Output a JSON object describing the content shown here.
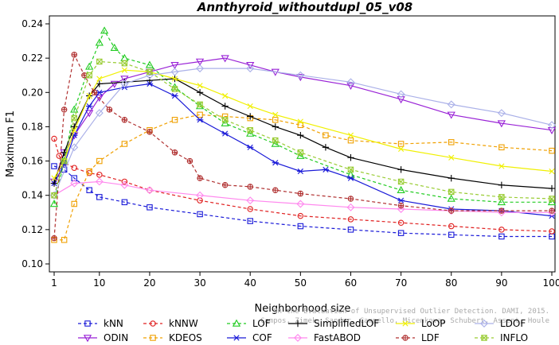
{
  "chart_data": {
    "type": "line",
    "title": "Annthyroid_withoutdupl_05_v08",
    "xlabel": "Neighborhood size",
    "ylabel": "Maximum F1",
    "xlim": [
      1,
      100
    ],
    "ylim": [
      0.1,
      0.24
    ],
    "xticks": [
      1,
      10,
      20,
      30,
      40,
      50,
      60,
      70,
      80,
      90,
      100
    ],
    "yticks": [
      0.1,
      0.12,
      0.14,
      0.16,
      0.18,
      0.2,
      0.22,
      0.24
    ],
    "x_tick_labels": [
      "1",
      "10",
      "20",
      "30",
      "40",
      "50",
      "60",
      "70",
      "80",
      "90",
      "100"
    ],
    "y_tick_labels": [
      "0.10",
      "0.12",
      "0.14",
      "0.16",
      "0.18",
      "0.20",
      "0.22",
      "0.24"
    ],
    "legend_placement": "bottom",
    "credit": "Campos, Zimek, Sander, Campello, Micenkova, Schubert, Assent, Houle",
    "credit2": "On the Evaluation of Unsupervised Outlier Detection. DAMI, 2015.",
    "series": [
      {
        "name": "kNN",
        "color": "#1a1ad8",
        "marker": "square",
        "dash": "4,3",
        "points": [
          [
            1,
            0.157
          ],
          [
            3,
            0.155
          ],
          [
            5,
            0.15
          ],
          [
            8,
            0.143
          ],
          [
            10,
            0.139
          ],
          [
            15,
            0.136
          ],
          [
            20,
            0.133
          ],
          [
            30,
            0.129
          ],
          [
            40,
            0.125
          ],
          [
            50,
            0.122
          ],
          [
            60,
            0.12
          ],
          [
            70,
            0.118
          ],
          [
            80,
            0.117
          ],
          [
            90,
            0.116
          ],
          [
            100,
            0.116
          ]
        ]
      },
      {
        "name": "ODIN",
        "color": "#9922d6",
        "marker": "triangle-down",
        "dash": "",
        "points": [
          [
            1,
            0.148
          ],
          [
            3,
            0.165
          ],
          [
            5,
            0.175
          ],
          [
            8,
            0.188
          ],
          [
            10,
            0.197
          ],
          [
            13,
            0.205
          ],
          [
            15,
            0.208
          ],
          [
            20,
            0.212
          ],
          [
            25,
            0.216
          ],
          [
            30,
            0.218
          ],
          [
            35,
            0.22
          ],
          [
            40,
            0.216
          ],
          [
            45,
            0.212
          ],
          [
            50,
            0.209
          ],
          [
            60,
            0.204
          ],
          [
            70,
            0.196
          ],
          [
            80,
            0.187
          ],
          [
            90,
            0.182
          ],
          [
            100,
            0.178
          ]
        ]
      },
      {
        "name": "kNNW",
        "color": "#e02020",
        "marker": "circle",
        "dash": "4,3",
        "points": [
          [
            1,
            0.173
          ],
          [
            2,
            0.163
          ],
          [
            3,
            0.159
          ],
          [
            5,
            0.156
          ],
          [
            8,
            0.153
          ],
          [
            10,
            0.152
          ],
          [
            15,
            0.148
          ],
          [
            20,
            0.143
          ],
          [
            30,
            0.137
          ],
          [
            40,
            0.132
          ],
          [
            50,
            0.128
          ],
          [
            60,
            0.126
          ],
          [
            70,
            0.124
          ],
          [
            80,
            0.122
          ],
          [
            90,
            0.12
          ],
          [
            100,
            0.119
          ]
        ]
      },
      {
        "name": "KDEOS",
        "color": "#f0a000",
        "marker": "square",
        "dash": "4,3",
        "points": [
          [
            1,
            0.114
          ],
          [
            3,
            0.114
          ],
          [
            5,
            0.135
          ],
          [
            8,
            0.154
          ],
          [
            10,
            0.16
          ],
          [
            15,
            0.17
          ],
          [
            20,
            0.178
          ],
          [
            25,
            0.184
          ],
          [
            30,
            0.187
          ],
          [
            35,
            0.186
          ],
          [
            40,
            0.185
          ],
          [
            45,
            0.184
          ],
          [
            50,
            0.181
          ],
          [
            55,
            0.175
          ],
          [
            60,
            0.172
          ],
          [
            70,
            0.17
          ],
          [
            80,
            0.171
          ],
          [
            90,
            0.168
          ],
          [
            100,
            0.166
          ]
        ]
      },
      {
        "name": "LOF",
        "color": "#22cc22",
        "marker": "triangle",
        "dash": "4,3",
        "points": [
          [
            1,
            0.135
          ],
          [
            3,
            0.16
          ],
          [
            5,
            0.19
          ],
          [
            8,
            0.215
          ],
          [
            10,
            0.229
          ],
          [
            11,
            0.236
          ],
          [
            13,
            0.226
          ],
          [
            15,
            0.22
          ],
          [
            20,
            0.216
          ],
          [
            25,
            0.203
          ],
          [
            30,
            0.192
          ],
          [
            35,
            0.182
          ],
          [
            40,
            0.176
          ],
          [
            45,
            0.17
          ],
          [
            50,
            0.163
          ],
          [
            60,
            0.152
          ],
          [
            70,
            0.143
          ],
          [
            80,
            0.138
          ],
          [
            90,
            0.136
          ],
          [
            100,
            0.136
          ]
        ]
      },
      {
        "name": "COF",
        "color": "#1a1ad8",
        "marker": "asterisk",
        "dash": "",
        "points": [
          [
            1,
            0.147
          ],
          [
            3,
            0.158
          ],
          [
            5,
            0.175
          ],
          [
            8,
            0.192
          ],
          [
            10,
            0.2
          ],
          [
            15,
            0.203
          ],
          [
            20,
            0.205
          ],
          [
            25,
            0.198
          ],
          [
            30,
            0.184
          ],
          [
            35,
            0.176
          ],
          [
            40,
            0.168
          ],
          [
            45,
            0.159
          ],
          [
            50,
            0.154
          ],
          [
            55,
            0.155
          ],
          [
            60,
            0.15
          ],
          [
            70,
            0.137
          ],
          [
            80,
            0.132
          ],
          [
            90,
            0.131
          ],
          [
            100,
            0.128
          ]
        ]
      },
      {
        "name": "SimplifiedLOF",
        "color": "#000000",
        "marker": "plus",
        "dash": "",
        "points": [
          [
            1,
            0.147
          ],
          [
            3,
            0.165
          ],
          [
            5,
            0.18
          ],
          [
            8,
            0.198
          ],
          [
            10,
            0.205
          ],
          [
            15,
            0.206
          ],
          [
            20,
            0.207
          ],
          [
            25,
            0.208
          ],
          [
            30,
            0.2
          ],
          [
            35,
            0.192
          ],
          [
            40,
            0.186
          ],
          [
            45,
            0.18
          ],
          [
            50,
            0.175
          ],
          [
            55,
            0.168
          ],
          [
            60,
            0.162
          ],
          [
            70,
            0.155
          ],
          [
            80,
            0.15
          ],
          [
            90,
            0.146
          ],
          [
            100,
            0.144
          ]
        ]
      },
      {
        "name": "FastABOD",
        "color": "#ff88ee",
        "marker": "diamond",
        "dash": "",
        "points": [
          [
            1,
            0.14
          ],
          [
            5,
            0.147
          ],
          [
            10,
            0.148
          ],
          [
            15,
            0.146
          ],
          [
            20,
            0.143
          ],
          [
            30,
            0.14
          ],
          [
            40,
            0.137
          ],
          [
            50,
            0.135
          ],
          [
            60,
            0.133
          ],
          [
            70,
            0.132
          ],
          [
            80,
            0.131
          ],
          [
            90,
            0.13
          ],
          [
            100,
            0.13
          ]
        ]
      },
      {
        "name": "LoOP",
        "color": "#f0f000",
        "marker": "x",
        "dash": "",
        "points": [
          [
            1,
            0.15
          ],
          [
            3,
            0.16
          ],
          [
            5,
            0.178
          ],
          [
            8,
            0.198
          ],
          [
            10,
            0.208
          ],
          [
            15,
            0.213
          ],
          [
            20,
            0.212
          ],
          [
            25,
            0.208
          ],
          [
            30,
            0.204
          ],
          [
            35,
            0.198
          ],
          [
            40,
            0.192
          ],
          [
            45,
            0.187
          ],
          [
            50,
            0.183
          ],
          [
            60,
            0.175
          ],
          [
            70,
            0.167
          ],
          [
            80,
            0.162
          ],
          [
            90,
            0.157
          ],
          [
            100,
            0.154
          ]
        ]
      },
      {
        "name": "LDF",
        "color": "#b03030",
        "marker": "circle-plus",
        "dash": "4,3",
        "points": [
          [
            1,
            0.115
          ],
          [
            3,
            0.19
          ],
          [
            5,
            0.222
          ],
          [
            7,
            0.21
          ],
          [
            9,
            0.2
          ],
          [
            12,
            0.19
          ],
          [
            15,
            0.184
          ],
          [
            20,
            0.177
          ],
          [
            25,
            0.165
          ],
          [
            28,
            0.16
          ],
          [
            30,
            0.15
          ],
          [
            35,
            0.146
          ],
          [
            40,
            0.145
          ],
          [
            45,
            0.143
          ],
          [
            50,
            0.141
          ],
          [
            60,
            0.138
          ],
          [
            70,
            0.134
          ],
          [
            80,
            0.131
          ],
          [
            90,
            0.131
          ],
          [
            100,
            0.131
          ]
        ]
      },
      {
        "name": "LDOF",
        "color": "#aab0e8",
        "marker": "diamond",
        "dash": "",
        "points": [
          [
            1,
            0.14
          ],
          [
            5,
            0.168
          ],
          [
            10,
            0.188
          ],
          [
            15,
            0.205
          ],
          [
            20,
            0.21
          ],
          [
            25,
            0.212
          ],
          [
            30,
            0.214
          ],
          [
            40,
            0.214
          ],
          [
            50,
            0.21
          ],
          [
            60,
            0.206
          ],
          [
            70,
            0.199
          ],
          [
            80,
            0.193
          ],
          [
            90,
            0.188
          ],
          [
            100,
            0.181
          ]
        ]
      },
      {
        "name": "INFLO",
        "color": "#99cc33",
        "marker": "square-x",
        "dash": "4,3",
        "points": [
          [
            1,
            0.14
          ],
          [
            3,
            0.16
          ],
          [
            5,
            0.185
          ],
          [
            8,
            0.21
          ],
          [
            10,
            0.218
          ],
          [
            15,
            0.217
          ],
          [
            20,
            0.212
          ],
          [
            25,
            0.202
          ],
          [
            30,
            0.193
          ],
          [
            35,
            0.184
          ],
          [
            40,
            0.178
          ],
          [
            45,
            0.172
          ],
          [
            50,
            0.165
          ],
          [
            60,
            0.155
          ],
          [
            70,
            0.148
          ],
          [
            80,
            0.142
          ],
          [
            90,
            0.139
          ],
          [
            100,
            0.138
          ]
        ]
      }
    ]
  }
}
